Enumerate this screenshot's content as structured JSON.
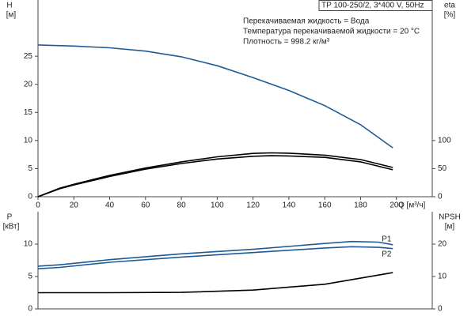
{
  "chart_data": [
    {
      "type": "line",
      "annotations": [
        "TP 100-250/2, 3*400 V, 50Hz",
        "Перекачиваемая жидкость = Вода",
        "Температура перекачиваемой жидкости = 20 °C",
        "Плотность = 998.2 кг/м³"
      ],
      "ylabel": "H",
      "yunit": "[м]",
      "y2label": "eta",
      "y2unit": "[%]",
      "xlabel": "Q [м³/ч]",
      "xlim": [
        0,
        220
      ],
      "xticks": [
        0,
        20,
        40,
        60,
        80,
        100,
        120,
        140,
        160,
        180,
        200
      ],
      "ylim": [
        0,
        35
      ],
      "yticks": [
        0,
        5,
        10,
        15,
        20,
        25
      ],
      "y2lim": [
        0,
        350
      ],
      "y2ticks": [
        0,
        50,
        100
      ],
      "series": [
        {
          "color": "#1f5a96",
          "x": [
            0,
            20,
            40,
            60,
            80,
            100,
            120,
            140,
            160,
            180,
            198
          ],
          "values": [
            27,
            26.8,
            26.5,
            25.9,
            24.9,
            23.3,
            21.2,
            18.9,
            16.2,
            12.8,
            8.7
          ]
        },
        {
          "color": "#000000",
          "axis": "y2",
          "x": [
            0,
            12,
            20,
            40,
            60,
            80,
            100,
            120,
            130,
            140,
            160,
            180,
            198
          ],
          "values": [
            0,
            15,
            22,
            38,
            51,
            62,
            71,
            77,
            78,
            77.5,
            74,
            66,
            52
          ]
        },
        {
          "color": "#000000",
          "axis": "y2",
          "x": [
            0,
            12,
            20,
            40,
            60,
            80,
            100,
            120,
            130,
            140,
            160,
            180,
            198
          ],
          "values": [
            0,
            14,
            21,
            36,
            49,
            59,
            67,
            72,
            73,
            72.5,
            70,
            62,
            48
          ]
        }
      ]
    },
    {
      "type": "line",
      "ylabel": "P",
      "yunit": "[кВт]",
      "y2label": "NPSH",
      "y2unit": "[м]",
      "xlim": [
        0,
        220
      ],
      "ylim": [
        0,
        15
      ],
      "yticks": [
        0,
        5,
        10
      ],
      "y2lim": [
        0,
        30
      ],
      "y2ticks": [
        0,
        10,
        20
      ],
      "series": [
        {
          "name": "P1",
          "color": "#1f5a96",
          "x": [
            0,
            12,
            40,
            80,
            120,
            160,
            175,
            190,
            198
          ],
          "values": [
            6.6,
            6.8,
            7.6,
            8.5,
            9.2,
            10.1,
            10.4,
            10.3,
            9.9
          ]
        },
        {
          "name": "P2",
          "color": "#1f5a96",
          "x": [
            0,
            12,
            40,
            80,
            120,
            160,
            175,
            190,
            198
          ],
          "values": [
            6.2,
            6.4,
            7.2,
            8.0,
            8.7,
            9.4,
            9.6,
            9.5,
            9.3
          ]
        },
        {
          "color": "#000000",
          "axis": "y2",
          "x": [
            0,
            40,
            80,
            120,
            160,
            198
          ],
          "values": [
            5,
            5,
            5.1,
            5.8,
            7.6,
            11.2
          ]
        }
      ]
    }
  ]
}
